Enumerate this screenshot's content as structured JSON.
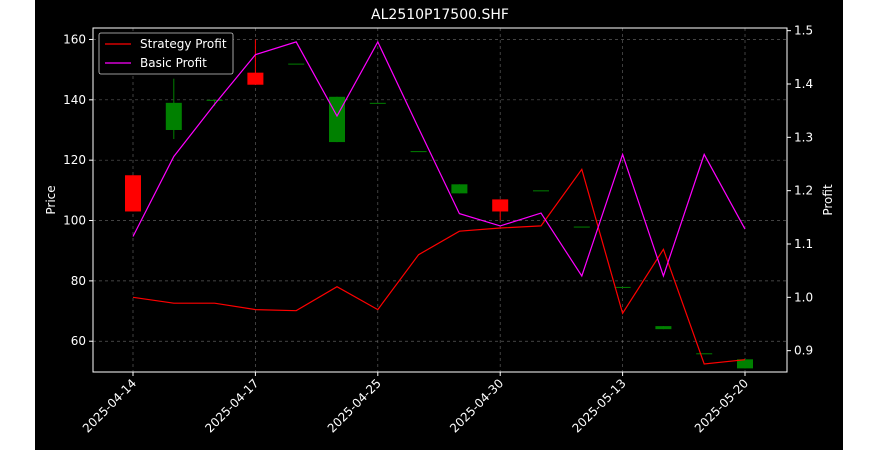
{
  "chart_data": {
    "type": "candlestick+line",
    "title": "AL2510P17500.SHF",
    "xlabel": "",
    "ylabel_left": "Price",
    "ylabel_right": "Profit",
    "ylim_left": [
      49.8,
      163.8
    ],
    "ylim_right": [
      0.86,
      1.505
    ],
    "yticks_left": [
      60,
      80,
      100,
      120,
      140,
      160
    ],
    "yticks_right": [
      0.9,
      1.0,
      1.1,
      1.2,
      1.3,
      1.4,
      1.5
    ],
    "xtick_labels": [
      {
        "label": "2025-04-14",
        "index": 0
      },
      {
        "label": "2025-04-17",
        "index": 3
      },
      {
        "label": "2025-04-25",
        "index": 6
      },
      {
        "label": "2025-04-30",
        "index": 9
      },
      {
        "label": "2025-05-13",
        "index": 12
      },
      {
        "label": "2025-05-20",
        "index": 15
      }
    ],
    "grid": true,
    "legend_position": "top-left",
    "background": "#000000",
    "up_color": "#008000",
    "down_color": "#ff0000",
    "candles": [
      {
        "open": 115,
        "close": 103,
        "high": 115,
        "low": 103
      },
      {
        "open": 130,
        "close": 139,
        "high": 147,
        "low": 127
      },
      {
        "open": 140,
        "close": 140,
        "high": 140,
        "low": 138
      },
      {
        "open": 149,
        "close": 145,
        "high": 160,
        "low": 145
      },
      {
        "open": 152,
        "close": 152,
        "high": 152,
        "low": 152
      },
      {
        "open": 126,
        "close": 141,
        "high": 141,
        "low": 126
      },
      {
        "open": 139,
        "close": 139,
        "high": 139,
        "low": 139
      },
      {
        "open": 123,
        "close": 123,
        "high": 123,
        "low": 123
      },
      {
        "open": 109,
        "close": 112,
        "high": 112,
        "low": 109
      },
      {
        "open": 107,
        "close": 103,
        "high": 107,
        "low": 100
      },
      {
        "open": 110,
        "close": 110,
        "high": 110,
        "low": 110
      },
      {
        "open": 98,
        "close": 98,
        "high": 98,
        "low": 98
      },
      {
        "open": 78,
        "close": 78,
        "high": 78,
        "low": 78
      },
      {
        "open": 64,
        "close": 65,
        "high": 65,
        "low": 64
      },
      {
        "open": 56,
        "close": 56,
        "high": 56,
        "low": 56
      },
      {
        "open": 51,
        "close": 54,
        "high": 54,
        "low": 51
      }
    ],
    "series": [
      {
        "name": "Strategy Profit",
        "color": "#ff0000",
        "values": [
          1.0,
          0.989,
          0.989,
          0.977,
          0.975,
          1.02,
          0.977,
          1.08,
          1.124,
          1.13,
          1.134,
          1.24,
          0.97,
          1.09,
          0.875,
          0.883
        ]
      },
      {
        "name": "Basic Profit",
        "color": "#ff00ff",
        "values": [
          1.114,
          1.264,
          1.362,
          1.455,
          1.479,
          1.34,
          1.479,
          1.317,
          1.157,
          1.134,
          1.158,
          1.04,
          1.268,
          1.04,
          1.268,
          1.128
        ]
      }
    ]
  }
}
